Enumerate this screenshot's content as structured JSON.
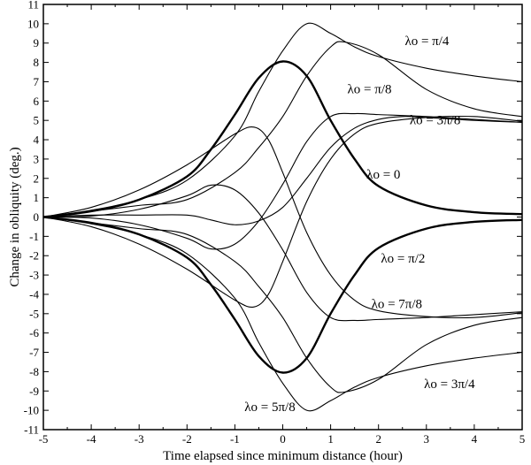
{
  "chart_data": {
    "type": "line",
    "title": "",
    "xlabel": "Time elapsed since minimum distance (hour)",
    "ylabel": "Change in obliquity (deg.)",
    "xlim": [
      -5,
      5
    ],
    "ylim": [
      -11,
      11
    ],
    "xticks": [
      "-5",
      "-4",
      "-3",
      "-2",
      "-1",
      "0",
      "1",
      "2",
      "3",
      "4",
      "5"
    ],
    "yticks": [
      "11",
      "10",
      "9",
      "8",
      "7",
      "6",
      "5",
      "4",
      "3",
      "2",
      "1",
      "0",
      "-1",
      "-2",
      "-3",
      "-4",
      "-5",
      "-6",
      "-7",
      "-8",
      "-9",
      "-10",
      "-11"
    ],
    "grid": false,
    "legend": "none",
    "series": [
      {
        "name": "λo = 0",
        "bold": true,
        "points": [
          [
            -5,
            0
          ],
          [
            -4,
            0.3
          ],
          [
            -3,
            0.9
          ],
          [
            -2,
            2.1
          ],
          [
            -1.5,
            3.5
          ],
          [
            -1,
            5.3
          ],
          [
            -0.5,
            7.2
          ],
          [
            0,
            8.05
          ],
          [
            0.5,
            7.3
          ],
          [
            1,
            5.0
          ],
          [
            1.5,
            3.0
          ],
          [
            2,
            1.6
          ],
          [
            3,
            0.6
          ],
          [
            4,
            0.25
          ],
          [
            5,
            0.15
          ]
        ]
      },
      {
        "name": "λo = π/2",
        "bold": true,
        "points": [
          [
            -5,
            0
          ],
          [
            -4,
            -0.3
          ],
          [
            -3,
            -0.9
          ],
          [
            -2,
            -2.1
          ],
          [
            -1.5,
            -3.5
          ],
          [
            -1,
            -5.3
          ],
          [
            -0.5,
            -7.2
          ],
          [
            0,
            -8.05
          ],
          [
            0.5,
            -7.3
          ],
          [
            1,
            -5.0
          ],
          [
            1.5,
            -3.0
          ],
          [
            2,
            -1.6
          ],
          [
            3,
            -0.6
          ],
          [
            4,
            -0.25
          ],
          [
            5,
            -0.15
          ]
        ]
      },
      {
        "name": "λo = π/4",
        "bold": false,
        "points": [
          [
            -5,
            0
          ],
          [
            -4,
            0.35
          ],
          [
            -3,
            0.9
          ],
          [
            -2,
            1.9
          ],
          [
            -1,
            4.2
          ],
          [
            -0.5,
            6.5
          ],
          [
            0,
            8.6
          ],
          [
            0.5,
            10.0
          ],
          [
            1,
            9.5
          ],
          [
            1.5,
            8.8
          ],
          [
            2,
            8.3
          ],
          [
            3,
            7.7
          ],
          [
            4,
            7.3
          ],
          [
            5,
            7.0
          ]
        ]
      },
      {
        "name": "λo = π/8",
        "bold": false,
        "points": [
          [
            -5,
            0
          ],
          [
            -4,
            0.3
          ],
          [
            -3,
            0.6
          ],
          [
            -2,
            0.9
          ],
          [
            -1,
            2.3
          ],
          [
            -0.5,
            3.6
          ],
          [
            0,
            5.2
          ],
          [
            0.5,
            7.3
          ],
          [
            1,
            8.8
          ],
          [
            1.3,
            9.05
          ],
          [
            2,
            8.4
          ],
          [
            3,
            6.6
          ],
          [
            4,
            5.6
          ],
          [
            5,
            5.2
          ]
        ]
      },
      {
        "name": "λo = 3π/8",
        "bold": false,
        "points": [
          [
            -5,
            0
          ],
          [
            -4,
            0.1
          ],
          [
            -3,
            0.1
          ],
          [
            -2,
            0.1
          ],
          [
            -1.5,
            -0.15
          ],
          [
            -1,
            -0.4
          ],
          [
            -0.5,
            -0.2
          ],
          [
            0,
            0.5
          ],
          [
            0.5,
            2.0
          ],
          [
            1,
            3.6
          ],
          [
            1.5,
            4.6
          ],
          [
            2,
            5.05
          ],
          [
            2.5,
            5.2
          ],
          [
            3,
            5.15
          ],
          [
            4,
            5.0
          ],
          [
            5,
            4.9
          ]
        ]
      },
      {
        "name": "λo = 7π/8",
        "bold": false,
        "points": [
          [
            -5,
            0
          ],
          [
            -4,
            0.5
          ],
          [
            -3,
            1.4
          ],
          [
            -2,
            2.7
          ],
          [
            -1,
            4.3
          ],
          [
            -0.6,
            4.65
          ],
          [
            -0.3,
            4.0
          ],
          [
            0,
            2.3
          ],
          [
            0.5,
            -0.8
          ],
          [
            1,
            -3.0
          ],
          [
            1.5,
            -4.3
          ],
          [
            2,
            -4.85
          ],
          [
            3,
            -5.15
          ],
          [
            4,
            -5.2
          ],
          [
            5,
            -4.95
          ]
        ]
      },
      {
        "name": "λo = 3π/4",
        "bold": false,
        "points": [
          [
            -5,
            0
          ],
          [
            -4,
            -0.35
          ],
          [
            -3,
            -0.9
          ],
          [
            -2,
            -1.9
          ],
          [
            -1,
            -4.2
          ],
          [
            -0.5,
            -6.5
          ],
          [
            0,
            -8.6
          ],
          [
            0.5,
            -10.0
          ],
          [
            1,
            -9.5
          ],
          [
            1.5,
            -8.8
          ],
          [
            2,
            -8.3
          ],
          [
            3,
            -7.7
          ],
          [
            4,
            -7.3
          ],
          [
            5,
            -7.0
          ]
        ]
      },
      {
        "name": "λo = 5π/8",
        "bold": false,
        "points": [
          [
            -5,
            0
          ],
          [
            -4,
            -0.3
          ],
          [
            -3,
            -0.6
          ],
          [
            -2,
            -0.9
          ],
          [
            -1,
            -2.3
          ],
          [
            -0.5,
            -3.6
          ],
          [
            0,
            -5.2
          ],
          [
            0.5,
            -7.3
          ],
          [
            1,
            -8.8
          ],
          [
            1.3,
            -9.05
          ],
          [
            2,
            -8.4
          ],
          [
            3,
            -6.6
          ],
          [
            4,
            -5.6
          ],
          [
            5,
            -5.2
          ]
        ]
      },
      {
        "name": "",
        "bold": false,
        "points": [
          [
            -5,
            0
          ],
          [
            -4,
            0.05
          ],
          [
            -3,
            0.4
          ],
          [
            -2,
            1.1
          ],
          [
            -1.5,
            1.65
          ],
          [
            -1,
            1.4
          ],
          [
            -0.5,
            0.2
          ],
          [
            0,
            -1.7
          ],
          [
            0.5,
            -3.9
          ],
          [
            1,
            -5.2
          ],
          [
            1.5,
            -5.35
          ],
          [
            2,
            -5.3
          ],
          [
            3,
            -5.2
          ],
          [
            4,
            -5.05
          ],
          [
            5,
            -4.9
          ]
        ]
      },
      {
        "name": "",
        "bold": false,
        "points": [
          [
            -5,
            0
          ],
          [
            -4,
            -0.05
          ],
          [
            -3,
            -0.4
          ],
          [
            -2,
            -1.1
          ],
          [
            -1.5,
            -1.65
          ],
          [
            -1,
            -1.4
          ],
          [
            -0.5,
            -0.2
          ],
          [
            0,
            1.7
          ],
          [
            0.5,
            3.9
          ],
          [
            1,
            5.2
          ],
          [
            1.5,
            5.35
          ],
          [
            2,
            5.3
          ],
          [
            3,
            5.2
          ],
          [
            4,
            5.05
          ],
          [
            5,
            4.9
          ]
        ]
      },
      {
        "name": "",
        "bold": false,
        "points": [
          [
            -5,
            0
          ],
          [
            -4,
            -0.5
          ],
          [
            -3,
            -1.4
          ],
          [
            -2,
            -2.7
          ],
          [
            -1,
            -4.3
          ],
          [
            -0.6,
            -4.65
          ],
          [
            -0.3,
            -4.0
          ],
          [
            0,
            -2.3
          ],
          [
            0.5,
            0.8
          ],
          [
            1,
            3.0
          ],
          [
            1.5,
            4.3
          ],
          [
            2,
            4.85
          ],
          [
            3,
            5.15
          ],
          [
            4,
            5.2
          ],
          [
            5,
            4.95
          ]
        ]
      }
    ],
    "labels": [
      {
        "text": "λo = π/4",
        "x": 2.55,
        "y": 8.9
      },
      {
        "text": "λo = π/8",
        "x": 1.35,
        "y": 6.4
      },
      {
        "text": "λo = 3π/8",
        "x": 2.65,
        "y": 4.8
      },
      {
        "text": "λo = 0",
        "x": 1.75,
        "y": 2.0
      },
      {
        "text": "λo = π/2",
        "x": 2.05,
        "y": -2.35
      },
      {
        "text": "λo = 7π/8",
        "x": 1.85,
        "y": -4.7
      },
      {
        "text": "λo = 3π/4",
        "x": 2.95,
        "y": -8.85
      },
      {
        "text": "λo = 5π/8",
        "x": -0.8,
        "y": -10.05
      }
    ]
  }
}
